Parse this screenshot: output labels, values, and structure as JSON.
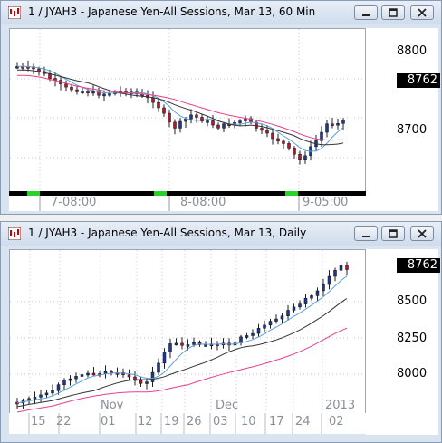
{
  "windows": [
    {
      "title": "1 / JYAH3 - Japanese Yen-All Sessions, Mar 13, 60 Min",
      "price_tag": "8762",
      "y_labels": [
        "8800",
        "8700"
      ],
      "x_labels": [
        "7-08:00",
        "8-08:00",
        "9-05:00"
      ]
    },
    {
      "title": "1 / JYAH3 - Japanese Yen-All Sessions, Mar 13, Daily",
      "price_tag": "8762",
      "y_labels": [
        "8500",
        "8250",
        "8000"
      ],
      "month_labels": [
        "Nov",
        "Dec",
        "2013"
      ],
      "x_labels": [
        "15",
        "22",
        "01",
        "12",
        "19",
        "26",
        "03",
        "10",
        "17",
        "24",
        "02"
      ]
    }
  ],
  "colors": {
    "title_bg": "#d9e4f1",
    "up_candle": "#1f3a8a",
    "down_candle": "#b0182e",
    "ma_fast": "#5aa0d8",
    "ma_slow": "#e8408a",
    "ma_mid": "#333333"
  }
}
